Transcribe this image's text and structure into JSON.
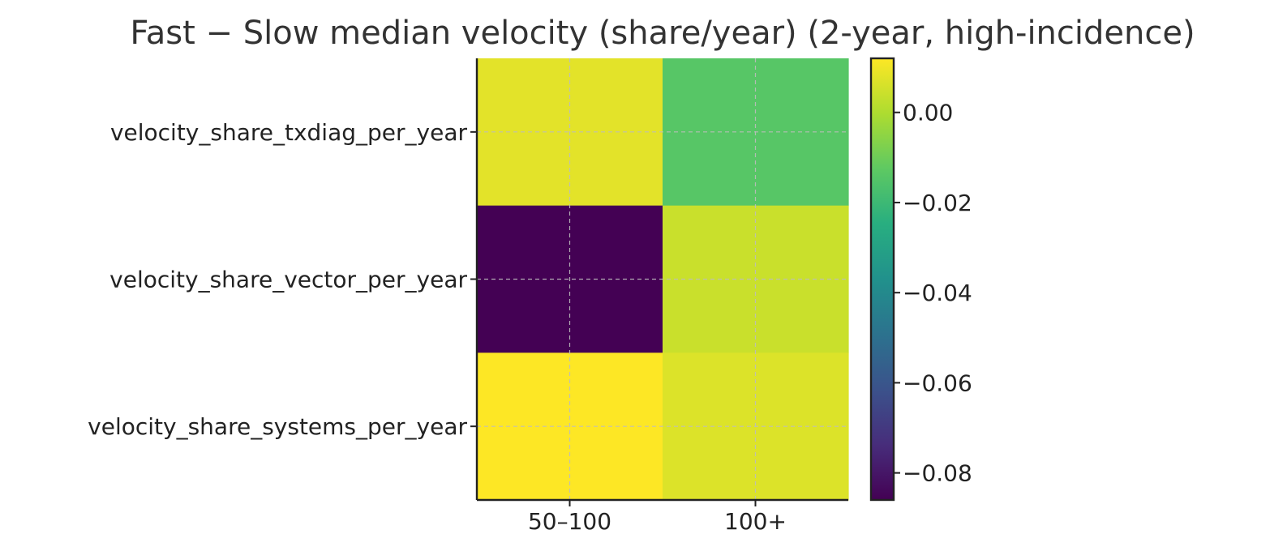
{
  "chart_data": {
    "type": "heatmap",
    "title": "Fast − Slow median velocity (share/year) (2-year, high-incidence)",
    "xlabel": "",
    "ylabel": "",
    "x_categories": [
      "50–100",
      "100+"
    ],
    "y_categories": [
      "velocity_share_txdiag_per_year",
      "velocity_share_vector_per_year",
      "velocity_share_systems_per_year"
    ],
    "values": [
      [
        0.008,
        -0.014
      ],
      [
        -0.086,
        0.004
      ],
      [
        0.012,
        0.007
      ]
    ],
    "colorbar": {
      "min": -0.086,
      "max": 0.012,
      "ticks": [
        0.0,
        -0.02,
        -0.04,
        -0.06,
        -0.08
      ],
      "tick_labels": [
        "0.00",
        "−0.02",
        "−0.04",
        "−0.06",
        "−0.08"
      ],
      "colormap": "viridis"
    },
    "grid": true
  }
}
